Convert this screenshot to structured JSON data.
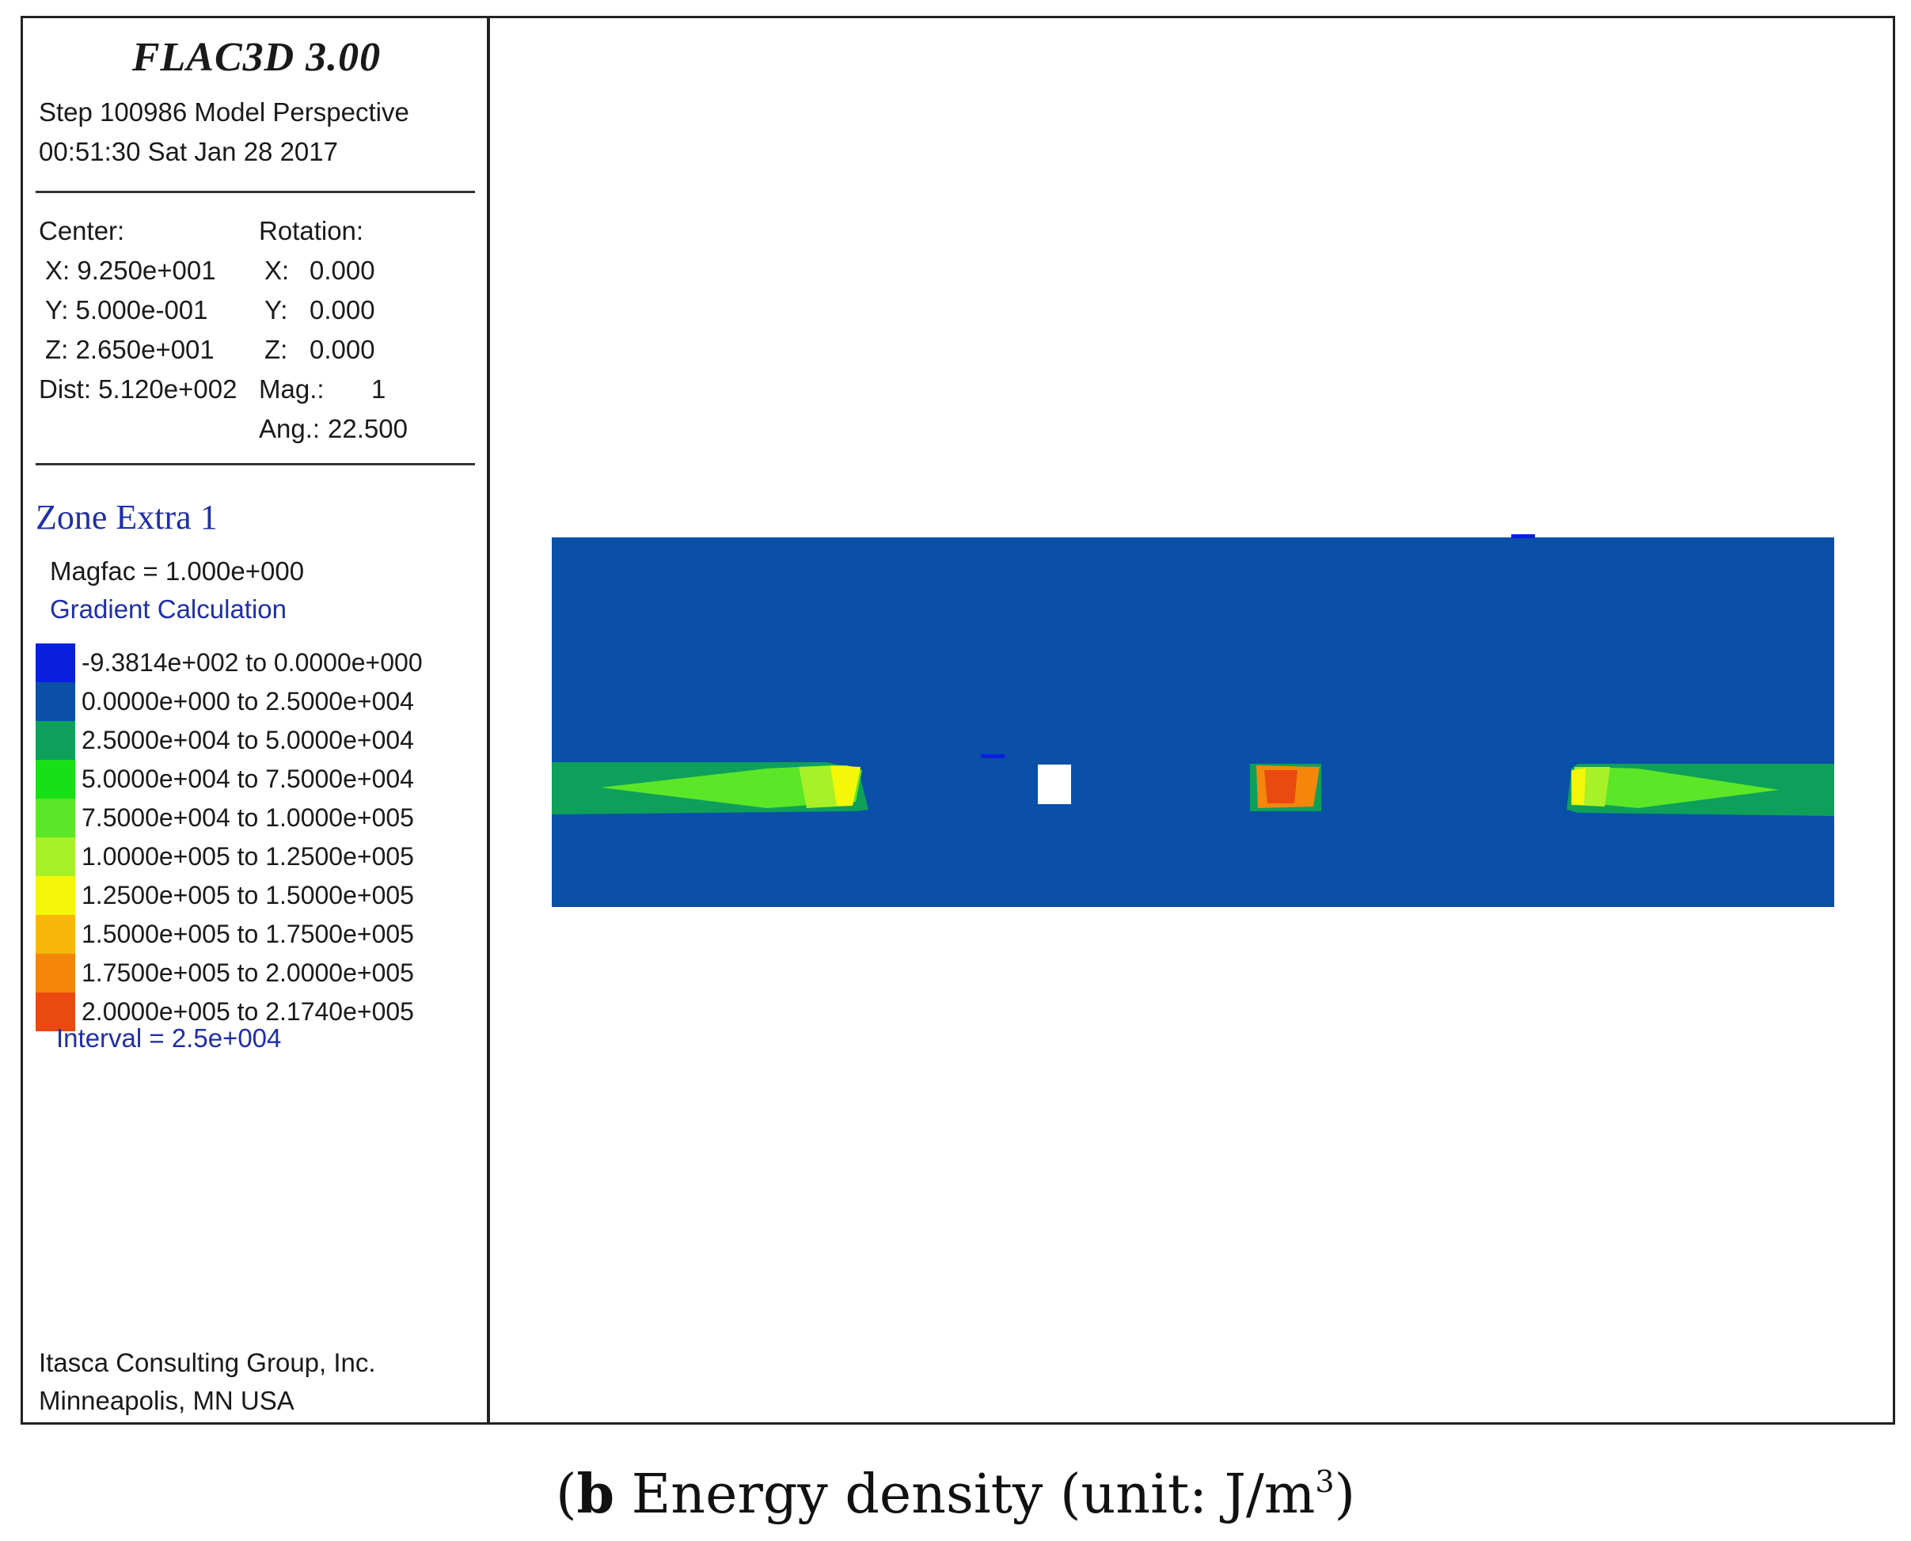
{
  "panel": {
    "title": "FLAC3D 3.00",
    "step_line": "Step 100986  Model Perspective",
    "time_line": "00:51:30 Sat Jan 28 2017",
    "center": {
      "label": "Center:",
      "x": "X: 9.250e+001",
      "y": "Y: 5.000e-001",
      "z": "Z: 2.650e+001",
      "dist": "Dist: 5.120e+002"
    },
    "rotation": {
      "label": "Rotation:",
      "x_label": "X:",
      "x_value": "0.000",
      "y_label": "Y:",
      "y_value": "0.000",
      "z_label": "Z:",
      "z_value": "0.000",
      "mag_label": "Mag.:",
      "mag_value": "1",
      "ang_label": "Ang.:",
      "ang_value": "22.500"
    },
    "zone_title": "Zone Extra 1",
    "magfac": "Magfac =  1.000e+000",
    "gradient": "Gradient Calculation",
    "legend": [
      {
        "range": "-9.3814e+002 to  0.0000e+000",
        "color": "#0a1ee0"
      },
      {
        "range": "0.0000e+000 to  2.5000e+004",
        "color": "#0a4fa8"
      },
      {
        "range": "2.5000e+004 to  5.0000e+004",
        "color": "#0ea05a"
      },
      {
        "range": "5.0000e+004 to  7.5000e+004",
        "color": "#18e018"
      },
      {
        "range": "7.5000e+004 to  1.0000e+005",
        "color": "#5ce628"
      },
      {
        "range": "1.0000e+005 to  1.2500e+005",
        "color": "#a8f028"
      },
      {
        "range": "1.2500e+005 to  1.5000e+005",
        "color": "#f4f808"
      },
      {
        "range": "1.5000e+005 to  1.7500e+005",
        "color": "#f8b80a"
      },
      {
        "range": "1.7500e+005 to  2.0000e+005",
        "color": "#f4860c"
      },
      {
        "range": "2.0000e+005 to  2.1740e+005",
        "color": "#ea4a10"
      }
    ],
    "interval": "Interval =  2.5e+004",
    "company_line1": "Itasca Consulting Group, Inc.",
    "company_line2": "Minneapolis, MN  USA"
  },
  "caption": {
    "label": "b",
    "text": " Energy density (unit: J/m",
    "superscript": "3",
    "close": ")"
  }
}
